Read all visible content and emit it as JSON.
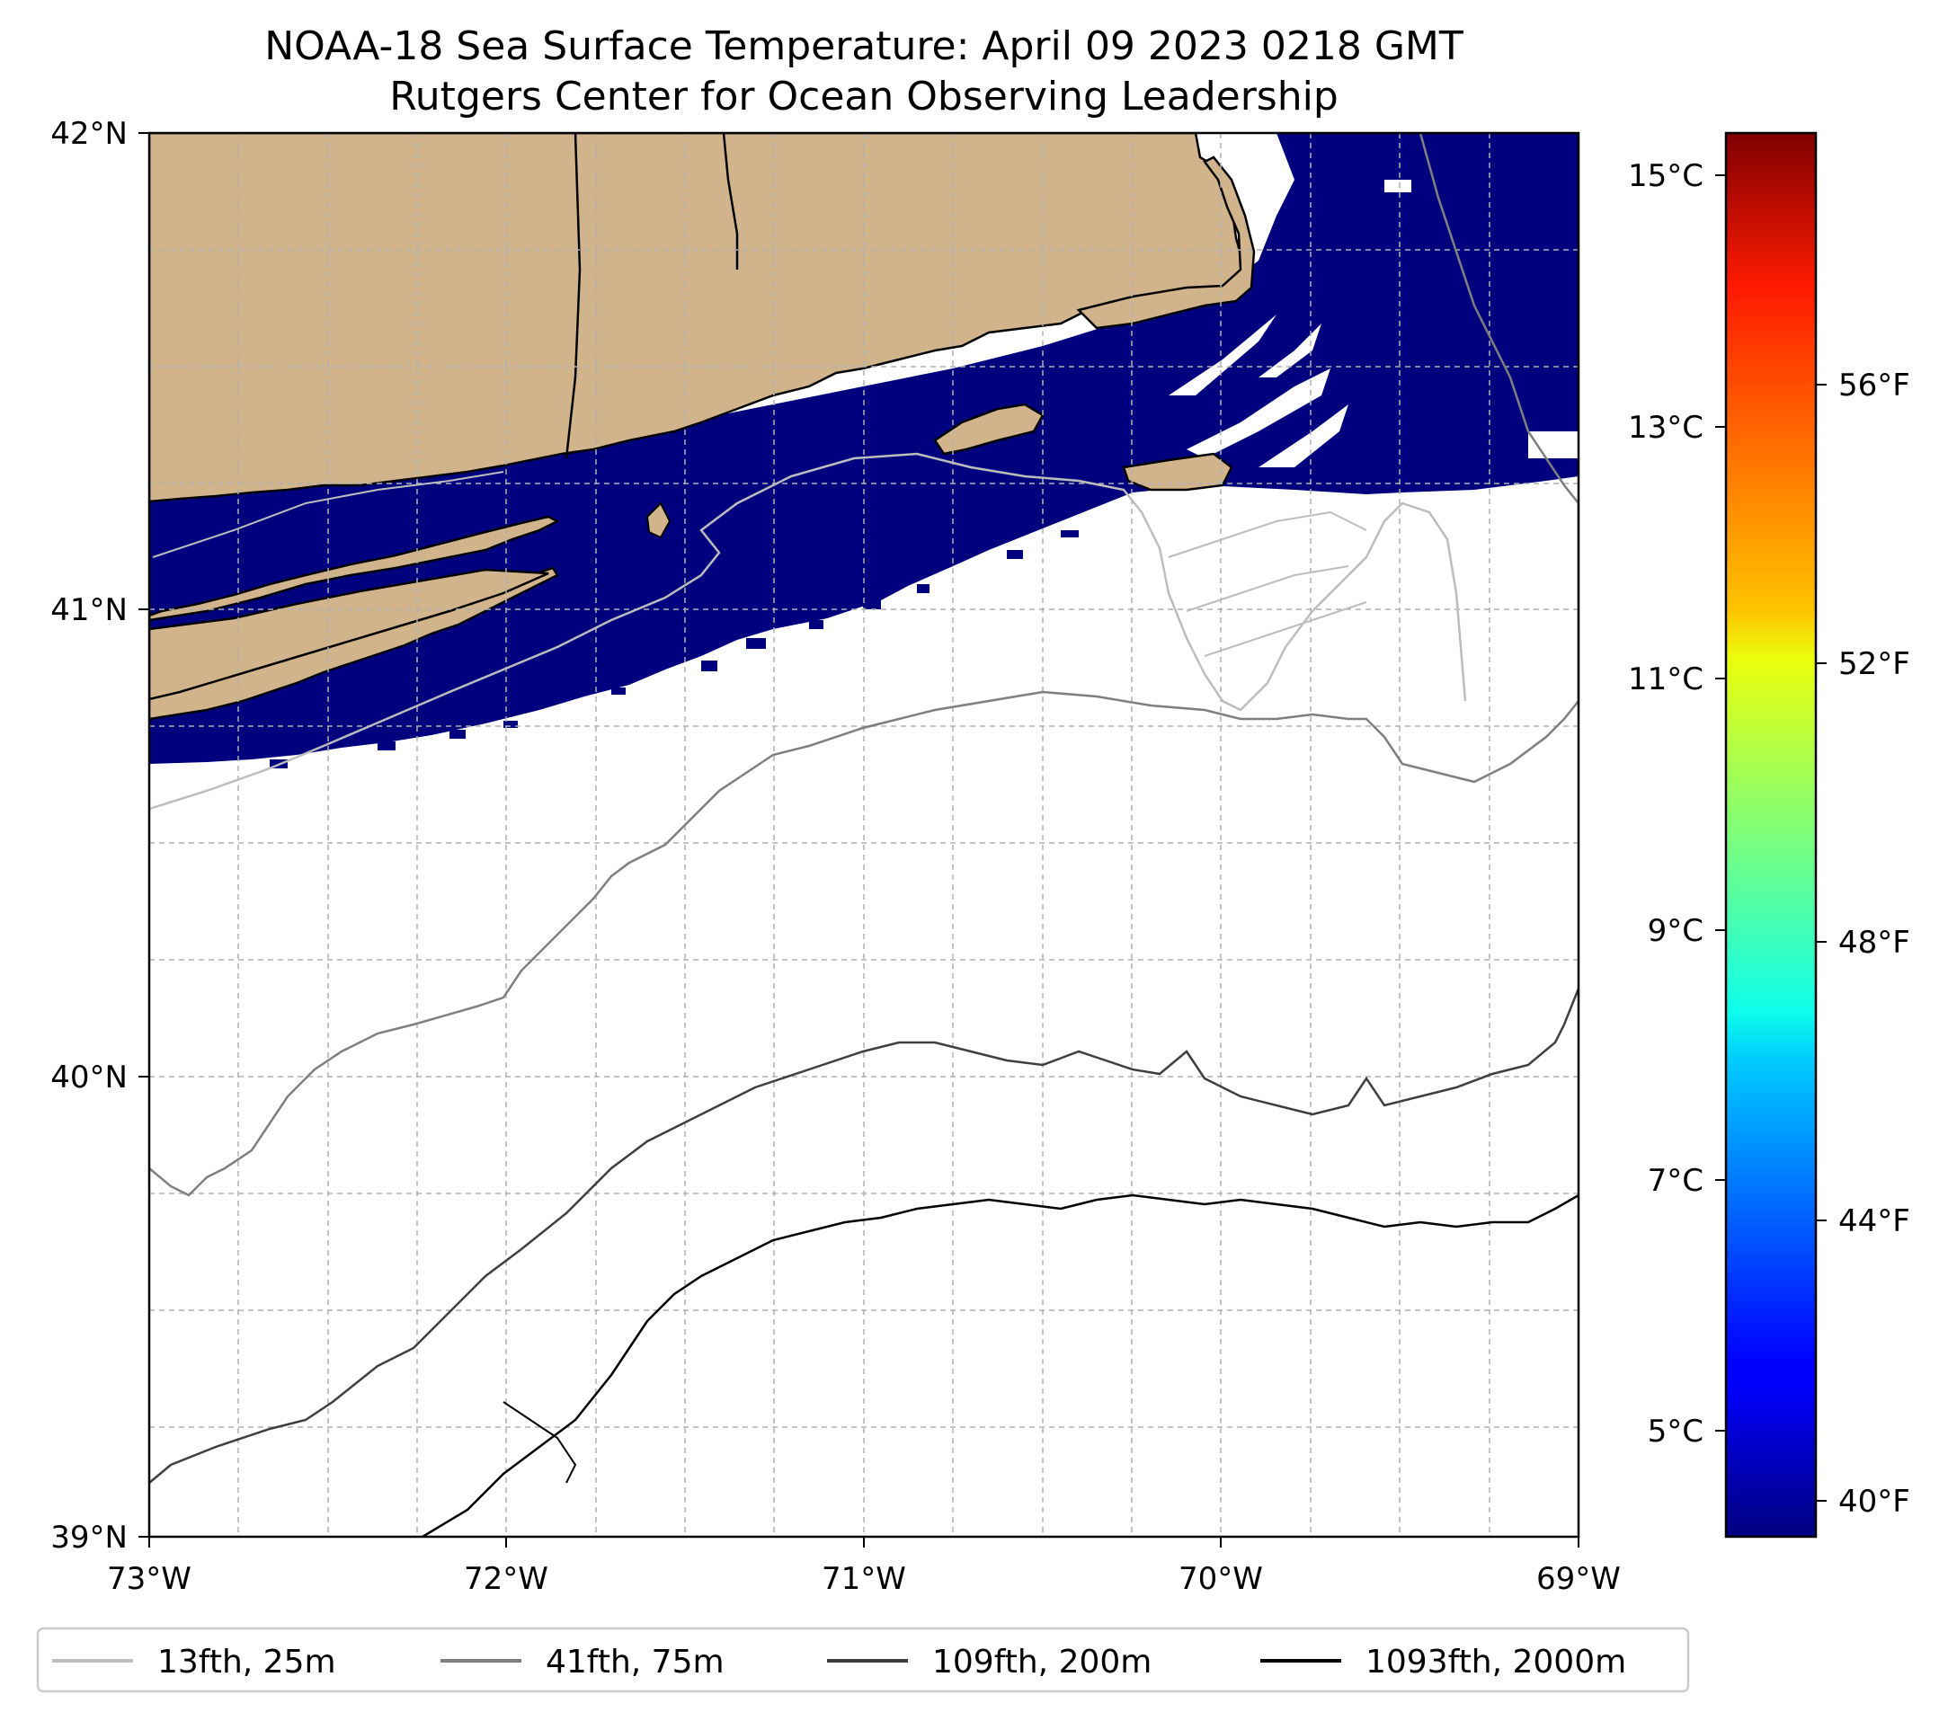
{
  "title": {
    "line1": "NOAA-18 Sea Surface Temperature: April 09 2023 0218 GMT",
    "line2": "Rutgers Center for Ocean Observing Leadership"
  },
  "map": {
    "lon_range": [
      -73,
      -69
    ],
    "lat_range": [
      39,
      42
    ],
    "lon_ticks": [
      "73°W",
      "72°W",
      "71°W",
      "70°W",
      "69°W"
    ],
    "lat_ticks": [
      "42°N",
      "41°N",
      "40°N",
      "39°N"
    ],
    "grid": "dashed",
    "land_color": "#d2b48c",
    "cloud_mask_color": "#ffffff",
    "sst_color_observed": "#00007f"
  },
  "colorbar": {
    "colormap": "jet",
    "celsius_ticks": [
      "15°C",
      "13°C",
      "11°C",
      "9°C",
      "7°C",
      "5°C"
    ],
    "fahrenheit_ticks": [
      "56°F",
      "52°F",
      "48°F",
      "44°F",
      "40°F"
    ]
  },
  "legend": {
    "items": [
      {
        "label": "13fth, 25m",
        "color": "#bdbdbd"
      },
      {
        "label": "41fth, 75m",
        "color": "#7f7f7f"
      },
      {
        "label": "109fth, 200m",
        "color": "#3f3f3f"
      },
      {
        "label": "1093fth, 2000m",
        "color": "#000000"
      }
    ]
  }
}
